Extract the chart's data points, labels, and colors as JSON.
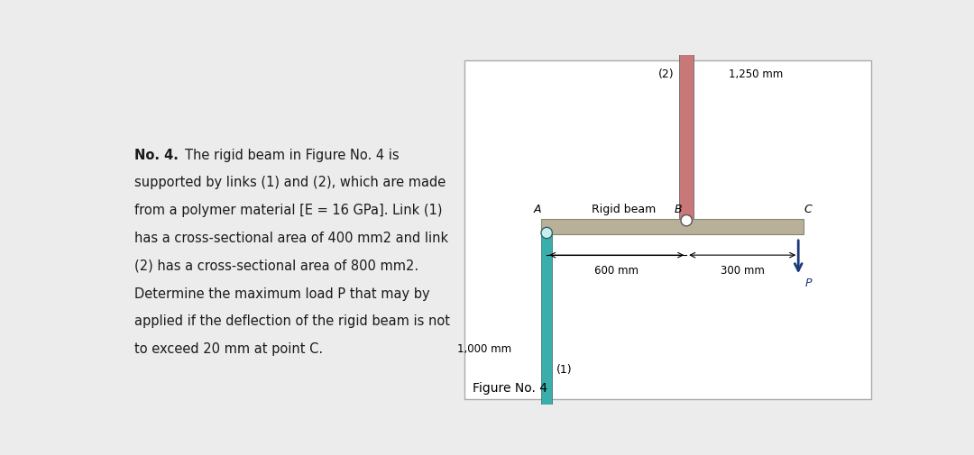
{
  "bg_color": "#ececec",
  "box_bg": "#ffffff",
  "text_color": "#1a1a1a",
  "link1_color": "#3aadad",
  "link2_color": "#c87878",
  "beam_color": "#b8b098",
  "cap_color": "#1a2e5a",
  "arrow_color": "#1a3a7a",
  "figure_label": "Figure No. 4",
  "label_A": "A",
  "label_B": "B",
  "label_C": "C",
  "label_1": "(1)",
  "label_2": "(2)",
  "label_rigid": "Rigid beam",
  "dim_600": "600 mm",
  "dim_300": "300 mm",
  "dim_1000": "1,000 mm",
  "dim_1250": "1,250 mm",
  "label_P": "P",
  "no4_bold": "No. 4.",
  "no4_rest": "        The rigid beam in Figure No. 4 is",
  "text_lines": [
    "supported by links (1) and (2), which are made",
    "from a polymer material [E = 16 GPa]. Link (1)",
    "has a cross-sectional area of 400 mm2 and link",
    "(2) has a cross-sectional area of 800 mm2.",
    "Determine the maximum load P that may by",
    "applied if the deflection of the rigid beam is not",
    "to exceed 20 mm at point C."
  ]
}
